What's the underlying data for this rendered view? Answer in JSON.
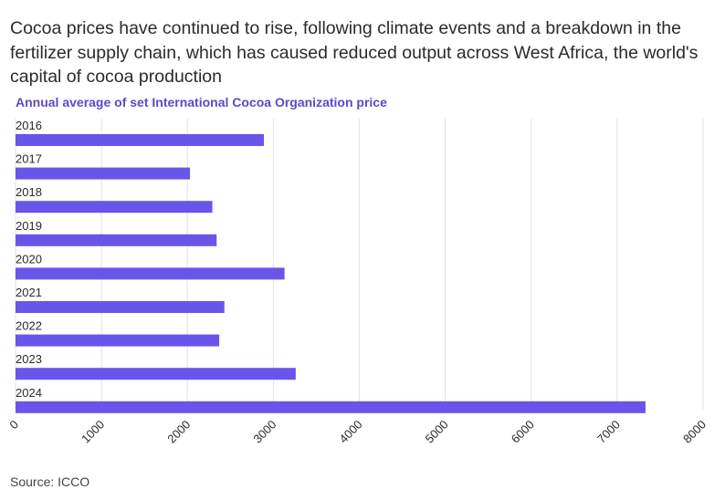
{
  "headline": "Cocoa prices have continued to rise, following climate events and a breakdown in the fertilizer supply chain, which has caused reduced output across West Africa, the world's capital of cocoa production",
  "source": "Source: ICCO",
  "colors": {
    "bar": "#6a55ea",
    "title": "#5f48c8",
    "grid": "#e3e3e3",
    "text": "#2b2b2b"
  },
  "chart_data": {
    "type": "bar",
    "orientation": "horizontal",
    "title": "Annual average of set International Cocoa Organization price",
    "categories": [
      "2016",
      "2017",
      "2018",
      "2019",
      "2020",
      "2021",
      "2022",
      "2023",
      "2024"
    ],
    "values": [
      2890,
      2030,
      2290,
      2340,
      3130,
      2430,
      2370,
      3260,
      7330
    ],
    "xlim": [
      0,
      8000
    ],
    "xticks": [
      "0",
      "1000",
      "2000",
      "3000",
      "4000",
      "5000",
      "6000",
      "7000",
      "8000"
    ],
    "xlabel": "",
    "ylabel": "",
    "grid": true
  }
}
